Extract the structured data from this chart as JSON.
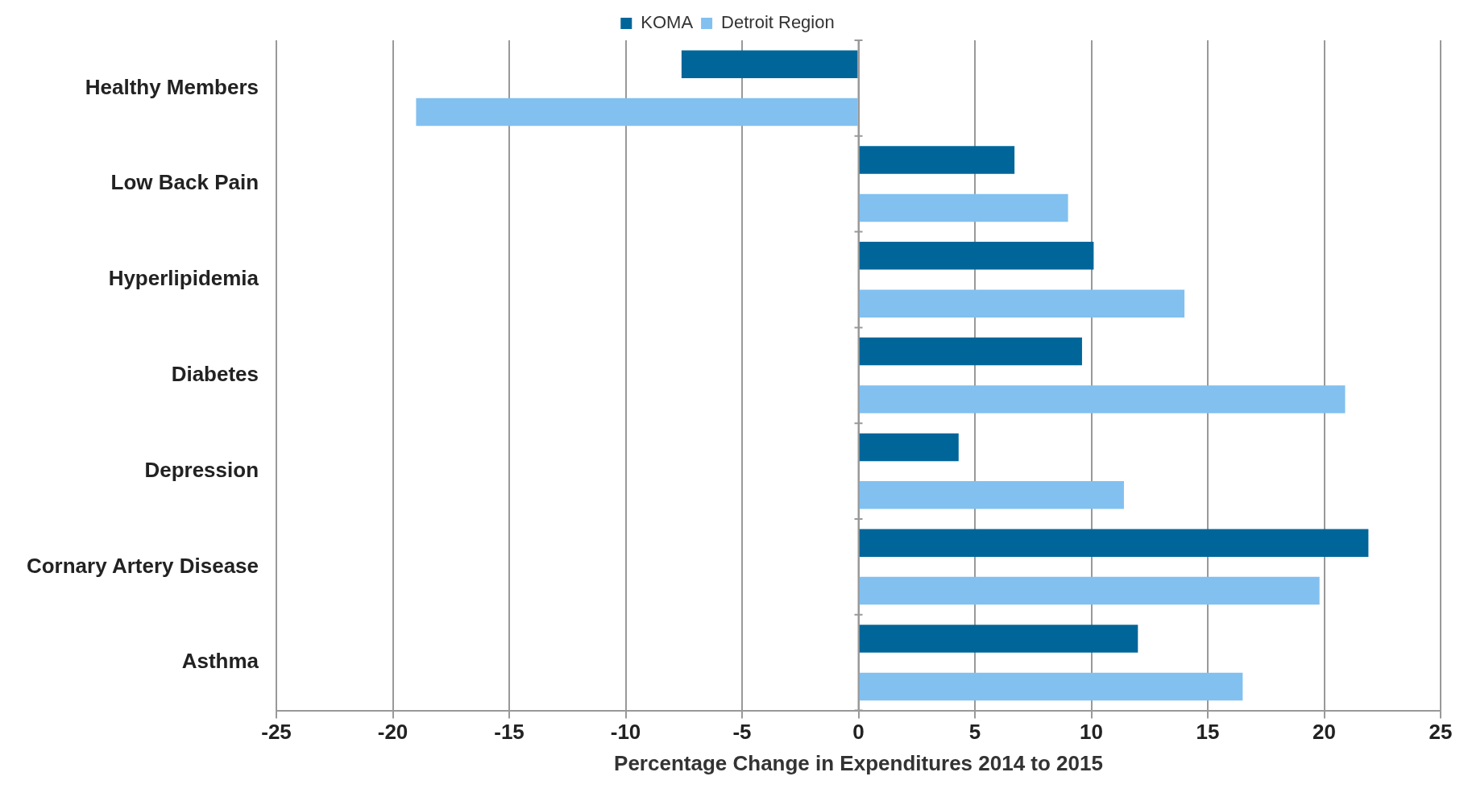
{
  "chart_data": {
    "type": "bar",
    "orientation": "horizontal",
    "xlabel": "Percentage Change in Expenditures 2014 to 2015",
    "categories": [
      "Healthy Members",
      "Low Back Pain",
      "Hyperlipidemia",
      "Diabetes",
      "Depression",
      "Cornary Artery Disease",
      "Asthma"
    ],
    "series": [
      {
        "name": "KOMA",
        "color": "#00669a",
        "values": [
          -7.6,
          6.7,
          10.1,
          9.6,
          4.3,
          21.9,
          12.0
        ]
      },
      {
        "name": "Detroit Region",
        "color": "#82c0f0",
        "values": [
          -19.0,
          9.0,
          14.0,
          20.9,
          11.4,
          19.8,
          16.5
        ]
      }
    ],
    "xlim": [
      -25,
      25
    ],
    "xticks": [
      -25,
      -20,
      -15,
      -10,
      -5,
      0,
      5,
      10,
      15,
      20,
      25
    ],
    "grid": "x",
    "legend": "top"
  }
}
